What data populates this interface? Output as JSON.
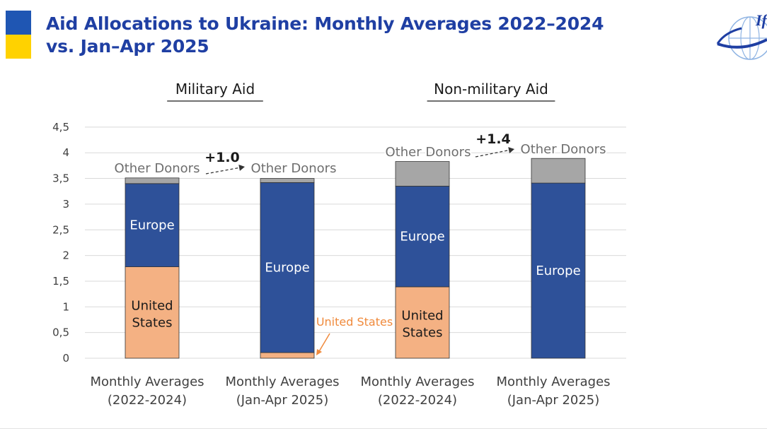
{
  "title": {
    "line1": "Aid Allocations to Ukraine: Monthly Averages 2022–2024",
    "line2": "vs.  Jan–Apr 2025"
  },
  "colors": {
    "flag_blue": "#1f56b3",
    "flag_yellow": "#ffd200",
    "title": "#1f3fa3",
    "united_states": "#f4b183",
    "europe": "#2e5199",
    "other_donors": "#a6a6a6",
    "us_annotation": "#f08a3c"
  },
  "logo": {
    "text": "IfW",
    "icon": "globe-logo-icon"
  },
  "chart_data": {
    "type": "bar",
    "stacked": true,
    "panels": [
      "Military Aid",
      "Non-military Aid"
    ],
    "categories": [
      [
        "Monthly Averages",
        "(2022-2024)"
      ],
      [
        "Monthly Averages",
        "(Jan-Apr 2025)"
      ],
      [
        "Monthly Averages",
        "(2022-2024)"
      ],
      [
        "Monthly Averages",
        "(Jan-Apr 2025)"
      ]
    ],
    "series": [
      {
        "name": "United States",
        "values": [
          1.78,
          0.11,
          1.39,
          0
        ]
      },
      {
        "name": "Europe",
        "values": [
          1.62,
          3.31,
          1.96,
          3.41
        ]
      },
      {
        "name": "Other Donors",
        "values": [
          0.11,
          0.08,
          0.48,
          0.48
        ]
      }
    ],
    "segment_labels": {
      "united_states": "United\nStates",
      "europe": "Europe",
      "other_donors": "Other Donors",
      "us_callout": "United States"
    },
    "changes": [
      "+1.0",
      "+1.4"
    ],
    "ylim": [
      0,
      4.5
    ],
    "yticks": [
      "0",
      "0,5",
      "1",
      "1,5",
      "2",
      "2,5",
      "3",
      "3,5",
      "4",
      "4,5"
    ],
    "grid": true,
    "xlabel": "",
    "ylabel": ""
  }
}
